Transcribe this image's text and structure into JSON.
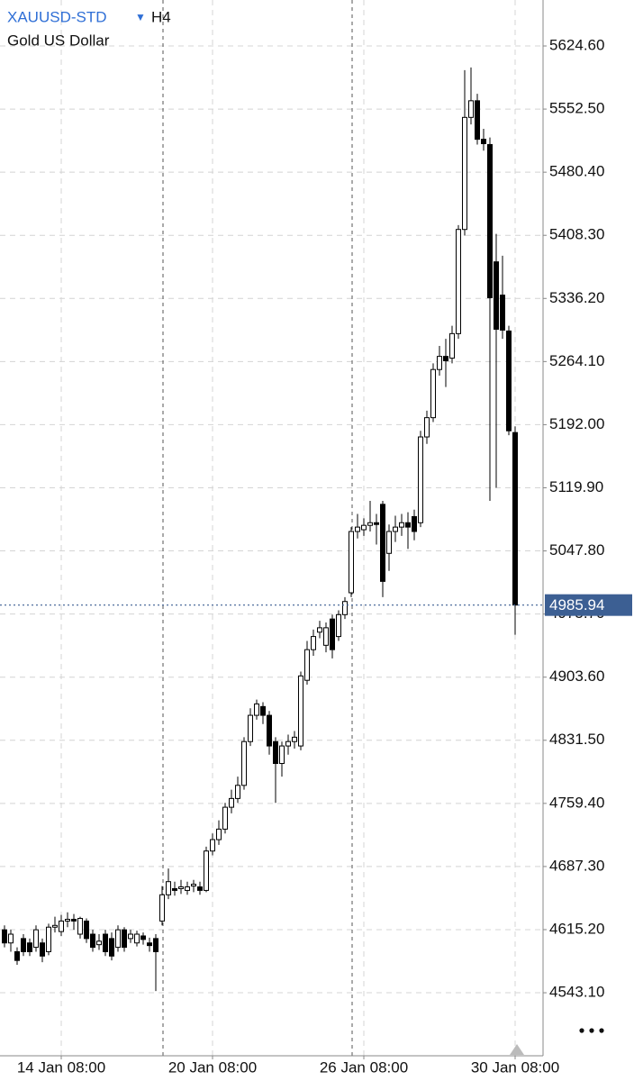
{
  "chart_data": {
    "type": "candlestick",
    "title": "XAUUSD-STD",
    "timeframe": "H4",
    "subtitle": "Gold US Dollar",
    "up_color": "#ffffff",
    "down_color": "#000000",
    "grid": true,
    "ylim": [
      4471.1,
      5677.1
    ],
    "yticks": [
      {
        "value": 5624.6,
        "label": "5624.60"
      },
      {
        "value": 5552.5,
        "label": "5552.50"
      },
      {
        "value": 5480.4,
        "label": "5480.40"
      },
      {
        "value": 5408.3,
        "label": "5408.30"
      },
      {
        "value": 5336.2,
        "label": "5336.20"
      },
      {
        "value": 5264.1,
        "label": "5264.10"
      },
      {
        "value": 5192,
        "label": "5192.00"
      },
      {
        "value": 5119.9,
        "label": "5119.90"
      },
      {
        "value": 5047.8,
        "label": "5047.80"
      },
      {
        "value": 4975.7,
        "label": "4975.70"
      },
      {
        "value": 4903.6,
        "label": "4903.60"
      },
      {
        "value": 4831.5,
        "label": "4831.50"
      },
      {
        "value": 4759.4,
        "label": "4759.40"
      },
      {
        "value": 4687.3,
        "label": "4687.30"
      },
      {
        "value": 4615.2,
        "label": "4615.20"
      },
      {
        "value": 4543.1,
        "label": "4543.10"
      }
    ],
    "last_price": 4985.94,
    "categories": [
      null,
      null,
      null,
      null,
      null,
      null,
      null,
      null,
      null,
      "14 Jan 08:00",
      null,
      null,
      null,
      null,
      null,
      null,
      null,
      null,
      null,
      null,
      null,
      null,
      null,
      null,
      null,
      null,
      null,
      null,
      null,
      null,
      null,
      null,
      null,
      "20 Jan 08:00",
      null,
      null,
      null,
      null,
      null,
      null,
      null,
      null,
      null,
      null,
      null,
      null,
      null,
      null,
      null,
      null,
      null,
      null,
      null,
      null,
      null,
      null,
      null,
      "26 Jan 08:00",
      null,
      null,
      null,
      null,
      null,
      null,
      null,
      null,
      null,
      null,
      null,
      null,
      null,
      null,
      null,
      null,
      null,
      null,
      null,
      null,
      null,
      null,
      null,
      "30 Jan 08:00"
    ],
    "open": [
      4615,
      4600,
      4590,
      4605,
      4600,
      4595,
      4600,
      4590,
      4618,
      4613,
      4625,
      4627,
      4610,
      4625,
      4610,
      4598,
      4610,
      4605,
      4595,
      4615,
      4605,
      4600,
      4608,
      4600,
      4605,
      4625,
      4655,
      4662,
      4662,
      4660,
      4665,
      4664,
      4660,
      4705,
      4718,
      4730,
      4755,
      4765,
      4780,
      4830,
      4860,
      4870,
      4860,
      4830,
      4805,
      4825,
      4830,
      4825,
      4900,
      4935,
      4955,
      4940,
      4970,
      4950,
      4975,
      5000,
      5070,
      5072,
      5077,
      5080,
      5101,
      5045,
      5070,
      5075,
      5080,
      5087,
      5080,
      5178,
      5200,
      5255,
      5270,
      5268,
      5296,
      5415,
      5543,
      5562,
      5518,
      5512,
      5378,
      5340,
      5299,
      5183
    ],
    "high": [
      4620,
      4615,
      4595,
      4610,
      4605,
      4620,
      4605,
      4622,
      4630,
      4632,
      4635,
      4633,
      4630,
      4628,
      4615,
      4610,
      4615,
      4612,
      4620,
      4618,
      4615,
      4614,
      4612,
      4606,
      4610,
      4665,
      4685,
      4670,
      4672,
      4670,
      4672,
      4670,
      4710,
      4725,
      4740,
      4760,
      4775,
      4790,
      4835,
      4868,
      4878,
      4875,
      4865,
      4835,
      4830,
      4838,
      4842,
      4910,
      4945,
      4958,
      4968,
      4966,
      4975,
      4980,
      4995,
      5075,
      5090,
      5085,
      5105,
      5090,
      5105,
      5078,
      5088,
      5090,
      5092,
      5095,
      5185,
      5208,
      5262,
      5282,
      5290,
      5305,
      5420,
      5597,
      5600,
      5570,
      5530,
      5520,
      5410,
      5385,
      5305,
      5190
    ],
    "low": [
      4595,
      4590,
      4575,
      4585,
      4585,
      4590,
      4578,
      4586,
      4612,
      4608,
      4618,
      4615,
      4605,
      4600,
      4590,
      4592,
      4585,
      4580,
      4590,
      4590,
      4600,
      4596,
      4598,
      4590,
      4545,
      4620,
      4650,
      4654,
      4656,
      4655,
      4658,
      4655,
      4658,
      4700,
      4712,
      4725,
      4748,
      4760,
      4775,
      4825,
      4855,
      4850,
      4815,
      4760,
      4790,
      4815,
      4822,
      4820,
      4895,
      4928,
      4948,
      4932,
      4925,
      4945,
      4970,
      4995,
      5062,
      5065,
      5070,
      5055,
      4995,
      5025,
      5058,
      5065,
      5050,
      5060,
      5075,
      5170,
      5195,
      5248,
      5235,
      5262,
      5290,
      5408,
      5535,
      5512,
      5505,
      5105,
      5120,
      5290,
      5180,
      4952
    ],
    "close": [
      4600,
      4610,
      4580,
      4590,
      4590,
      4615,
      4585,
      4618,
      4620,
      4625,
      4627,
      4625,
      4628,
      4605,
      4595,
      4602,
      4590,
      4585,
      4615,
      4595,
      4610,
      4610,
      4604,
      4597,
      4590,
      4655,
      4670,
      4660,
      4664,
      4664,
      4667,
      4660,
      4705,
      4718,
      4730,
      4755,
      4765,
      4780,
      4830,
      4860,
      4873,
      4860,
      4825,
      4805,
      4825,
      4830,
      4835,
      4905,
      4935,
      4950,
      4960,
      4960,
      4935,
      4975,
      4990,
      5070,
      5075,
      5077,
      5080,
      5078,
      5013,
      5070,
      5075,
      5080,
      5075,
      5070,
      5178,
      5200,
      5255,
      5270,
      5265,
      5296,
      5415,
      5543,
      5562,
      5518,
      5513,
      5337,
      5301,
      5300,
      5185,
      4985.94
    ]
  }
}
